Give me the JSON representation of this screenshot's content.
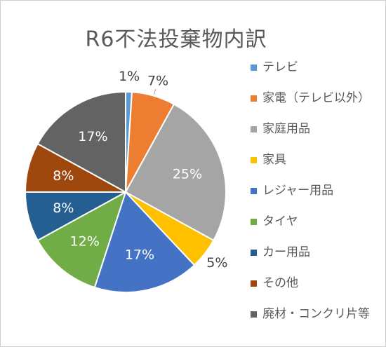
{
  "chart_data": {
    "type": "pie",
    "title": "R6不法投棄物内訳",
    "unit": "%",
    "start_angle_deg": 0,
    "direction": "clockwise",
    "legend_position": "right",
    "slices": [
      {
        "label": "テレビ",
        "value": 1,
        "display": "1%",
        "color": "#5b9bd5",
        "label_placement": "outside"
      },
      {
        "label": "家電（テレビ以外）",
        "value": 7,
        "display": "7%",
        "color": "#ed7d31",
        "label_placement": "outside"
      },
      {
        "label": "家庭用品",
        "value": 25,
        "display": "25%",
        "color": "#a5a5a5",
        "label_placement": "inside"
      },
      {
        "label": "家具",
        "value": 5,
        "display": "5%",
        "color": "#ffc000",
        "label_placement": "outside"
      },
      {
        "label": "レジャー用品",
        "value": 17,
        "display": "17%",
        "color": "#4472c4",
        "label_placement": "inside"
      },
      {
        "label": "タイヤ",
        "value": 12,
        "display": "12%",
        "color": "#70ad47",
        "label_placement": "inside"
      },
      {
        "label": "カー用品",
        "value": 8,
        "display": "8%",
        "color": "#255e91",
        "label_placement": "inside"
      },
      {
        "label": "その他",
        "value": 8,
        "display": "8%",
        "color": "#9e480e",
        "label_placement": "inside"
      },
      {
        "label": "廃材・コンクリ片等",
        "value": 17,
        "display": "17%",
        "color": "#636363",
        "label_placement": "inside"
      }
    ]
  }
}
